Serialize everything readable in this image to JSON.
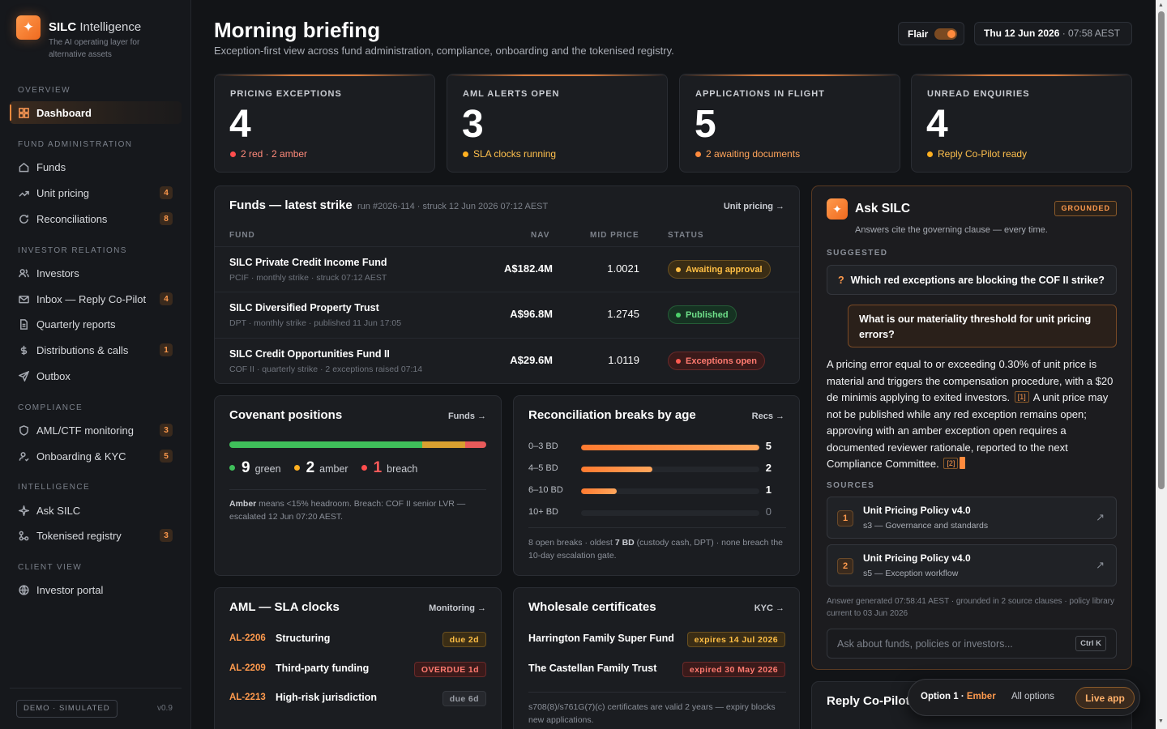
{
  "brand": {
    "name": "SILC",
    "name_light": " Intelligence",
    "tagline": "The AI operating layer for alternative assets"
  },
  "sidebar": {
    "sections": [
      {
        "label": "OVERVIEW"
      },
      {
        "label": "FUND ADMINISTRATION"
      },
      {
        "label": "INVESTOR RELATIONS"
      },
      {
        "label": "COMPLIANCE"
      },
      {
        "label": "INTELLIGENCE"
      },
      {
        "label": "CLIENT VIEW"
      }
    ],
    "items": [
      {
        "label": "Dashboard",
        "icon": "dashboard-grid-icon",
        "badge": ""
      },
      {
        "label": "Funds",
        "icon": "home-icon",
        "badge": ""
      },
      {
        "label": "Unit pricing",
        "icon": "trend-up-icon",
        "badge": "4"
      },
      {
        "label": "Reconciliations",
        "icon": "refresh-icon",
        "badge": "8"
      },
      {
        "label": "Investors",
        "icon": "users-icon",
        "badge": ""
      },
      {
        "label": "Inbox — Reply Co-Pilot",
        "icon": "mail-icon",
        "badge": "4"
      },
      {
        "label": "Quarterly reports",
        "icon": "document-icon",
        "badge": ""
      },
      {
        "label": "Distributions & calls",
        "icon": "dollar-icon",
        "badge": "1"
      },
      {
        "label": "Outbox",
        "icon": "send-icon",
        "badge": ""
      },
      {
        "label": "AML/CTF monitoring",
        "icon": "shield-icon",
        "badge": "3"
      },
      {
        "label": "Onboarding & KYC",
        "icon": "user-check-icon",
        "badge": "5"
      },
      {
        "label": "Ask SILC",
        "icon": "sparkle-icon",
        "badge": ""
      },
      {
        "label": "Tokenised registry",
        "icon": "nodes-icon",
        "badge": "3"
      },
      {
        "label": "Investor portal",
        "icon": "globe-icon",
        "badge": ""
      }
    ],
    "demo_label": "DEMO · SIMULATED",
    "version": "v0.9"
  },
  "header": {
    "title": "Morning briefing",
    "subtitle": "Exception-first view across fund administration, compliance, onboarding and the tokenised registry.",
    "flair_label": "Flair",
    "flair_on": true,
    "date": "Thu 12 Jun 2026",
    "time": " · 07:58 AEST"
  },
  "kpis": [
    {
      "label": "PRICING EXCEPTIONS",
      "value": "4",
      "note": "2 red · 2 amber",
      "dot_color": "#ff4d4d"
    },
    {
      "label": "AML ALERTS OPEN",
      "value": "3",
      "note": "SLA clocks running",
      "dot_color": "#ffb020"
    },
    {
      "label": "APPLICATIONS IN FLIGHT",
      "value": "5",
      "note": "2 awaiting documents",
      "dot_color": "#ff8a3d"
    },
    {
      "label": "UNREAD ENQUIRIES",
      "value": "4",
      "note": "Reply Co-Pilot ready",
      "dot_color": "#ffb020"
    }
  ],
  "funds": {
    "title": "Funds — latest strike",
    "meta": "run #2026-114 · struck 12 Jun 2026 07:12 AEST",
    "link": "Unit pricing →",
    "headers": {
      "fund": "FUND",
      "nav": "NAV",
      "mid": "MID PRICE",
      "status": "STATUS"
    },
    "rows": [
      {
        "name": "SILC Private Credit Income Fund",
        "sub": "PCIF · monthly strike · struck 07:12 AEST",
        "nav": "A$182.4M",
        "mid": "1.0021",
        "status": "Awaiting approval",
        "tone": "amber"
      },
      {
        "name": "SILC Diversified Property Trust",
        "sub": "DPT · monthly strike · published 11 Jun 17:05",
        "nav": "A$96.8M",
        "mid": "1.2745",
        "status": "Published",
        "tone": "green"
      },
      {
        "name": "SILC Credit Opportunities Fund II",
        "sub": "COF II · quarterly strike · 2 exceptions raised 07:14",
        "nav": "A$29.6M",
        "mid": "1.0119",
        "status": "Exceptions open",
        "tone": "red"
      }
    ]
  },
  "covenant": {
    "title": "Covenant positions",
    "link": "Funds →",
    "green": 9,
    "amber": 2,
    "breach": 1,
    "green_label": "green",
    "amber_label": "amber",
    "breach_label": "breach",
    "colors": {
      "green": "#3fbf5a",
      "amber": "#d9a030",
      "breach": "#e85a5a"
    },
    "note_bold": "Amber",
    "note_rest": " means <15% headroom. Breach: COF II senior LVR — escalated 12 Jun 07:20 AEST."
  },
  "recon": {
    "title": "Reconciliation breaks by age",
    "link": "Recs →",
    "max": 5,
    "rows": [
      {
        "label": "0–3 BD",
        "value": 5
      },
      {
        "label": "4–5 BD",
        "value": 2
      },
      {
        "label": "6–10 BD",
        "value": 1
      },
      {
        "label": "10+ BD",
        "value": 0
      }
    ],
    "note_a": "8 open breaks · oldest ",
    "note_bold": "7 BD",
    "note_b": " (custody cash, DPT) · none breach the 10-day escalation gate."
  },
  "aml": {
    "title": "AML — SLA clocks",
    "link": "Monitoring →",
    "rows": [
      {
        "id": "AL-2206",
        "name": "Structuring",
        "tag": "due 2d",
        "tone": "amber"
      },
      {
        "id": "AL-2209",
        "name": "Third-party funding",
        "tag": "OVERDUE 1d",
        "tone": "red"
      },
      {
        "id": "AL-2213",
        "name": "High-risk jurisdiction",
        "tag": "due 6d",
        "tone": "grey"
      }
    ]
  },
  "wholesale": {
    "title": "Wholesale certificates",
    "link": "KYC →",
    "rows": [
      {
        "name": "Harrington Family Super Fund",
        "tag": "expires 14 Jul 2026",
        "tone": "amber"
      },
      {
        "name": "The Castellan Family Trust",
        "tag": "expired 30 May 2026",
        "tone": "red"
      }
    ],
    "note": "s708(8)/s761G(7)(c) certificates are valid 2 years — expiry blocks new applications."
  },
  "ask": {
    "title": "Ask SILC",
    "badge": "GROUNDED",
    "subtitle": "Answers cite the governing clause — every time.",
    "suggested_label": "SUGGESTED",
    "suggestion": "Which red exceptions are blocking the COF II strike?",
    "question": "What is our materiality threshold for unit pricing errors?",
    "answer_a": "A pricing error equal to or exceeding 0.30% of unit price is material and triggers the compensation procedure, with a $20 de minimis applying to exited investors.",
    "cite1": "[1]",
    "answer_b": " A unit price may not be published while any red exception remains open; approving with an amber exception open requires a documented reviewer rationale, reported to the next Compliance Committee.",
    "cite2": "[2]",
    "sources_label": "SOURCES",
    "sources": [
      {
        "n": "1",
        "title": "Unit Pricing Policy v4.0",
        "sub": "s3 — Governance and standards"
      },
      {
        "n": "2",
        "title": "Unit Pricing Policy v4.0",
        "sub": "s5 — Exception workflow"
      }
    ],
    "meta": "Answer generated 07:58:41 AEST · grounded in 2 source clauses · policy library current to 03 Jun 2026",
    "placeholder": "Ask about funds, policies or investors...",
    "kbd": "Ctrl K"
  },
  "reply": {
    "title": "Reply Co-Pilot"
  },
  "optionbar": {
    "option": "Option 1",
    "sep": " · ",
    "theme": "Ember",
    "all": "All options",
    "live": "Live app"
  }
}
